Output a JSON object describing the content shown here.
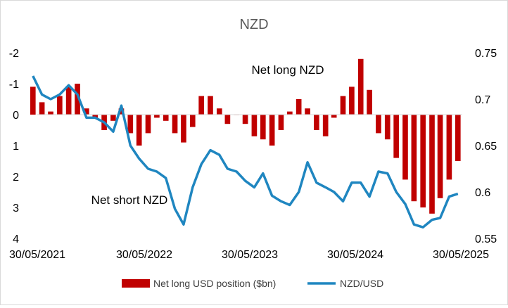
{
  "chart_data": {
    "type": "bar+line",
    "title": "NZD",
    "x_ticks": [
      "30/05/2021",
      "30/05/2022",
      "30/05/2023",
      "30/05/2024",
      "30/05/2025"
    ],
    "x_range": [
      "2021-05-30",
      "2025-05-30"
    ],
    "left_axis": {
      "ticks": [
        "-2",
        "-1",
        "0",
        "1",
        "2",
        "3",
        "4"
      ],
      "range": [
        -2,
        4
      ],
      "inverted": true
    },
    "right_axis": {
      "ticks": [
        "0.75",
        "0.7",
        "0.65",
        "0.6",
        "0.55"
      ],
      "range": [
        0.55,
        0.75
      ]
    },
    "annotations": [
      "Net long NZD",
      "Net short NZD"
    ],
    "series": [
      {
        "name": "Net long USD position ($bn)",
        "type": "bar",
        "axis": "left",
        "color": "#c00000",
        "x": [
          "2021-05",
          "2021-06",
          "2021-07",
          "2021-08",
          "2021-09",
          "2021-10",
          "2021-11",
          "2021-12",
          "2022-01",
          "2022-02",
          "2022-03",
          "2022-04",
          "2022-05",
          "2022-06",
          "2022-07",
          "2022-08",
          "2022-09",
          "2022-10",
          "2022-11",
          "2022-12",
          "2023-01",
          "2023-02",
          "2023-03",
          "2023-04",
          "2023-05",
          "2023-06",
          "2023-07",
          "2023-08",
          "2023-09",
          "2023-10",
          "2023-11",
          "2023-12",
          "2024-01",
          "2024-02",
          "2024-03",
          "2024-04",
          "2024-05",
          "2024-06",
          "2024-07",
          "2024-08",
          "2024-09",
          "2024-10",
          "2024-11",
          "2024-12",
          "2025-01",
          "2025-02",
          "2025-03",
          "2025-04",
          "2025-05"
        ],
        "values": [
          -0.9,
          -0.4,
          -0.1,
          -0.6,
          -0.9,
          -1.0,
          -0.2,
          0.1,
          0.5,
          0.2,
          -0.2,
          0.6,
          1.0,
          0.6,
          0.1,
          0.2,
          0.6,
          0.9,
          0.4,
          -0.6,
          -0.6,
          -0.2,
          0.3,
          0.0,
          0.3,
          0.7,
          0.8,
          1.0,
          0.5,
          -0.1,
          -0.5,
          -0.2,
          0.5,
          0.7,
          0.1,
          -0.6,
          -0.9,
          -1.8,
          -0.8,
          0.6,
          0.8,
          1.4,
          2.1,
          2.8,
          3.0,
          3.2,
          2.7,
          2.1,
          1.5
        ]
      },
      {
        "name": "NZD/USD",
        "type": "line",
        "axis": "right",
        "color": "#1f86c0",
        "x": [
          "2021-05",
          "2021-06",
          "2021-07",
          "2021-08",
          "2021-09",
          "2021-10",
          "2021-11",
          "2021-12",
          "2022-01",
          "2022-02",
          "2022-03",
          "2022-04",
          "2022-05",
          "2022-06",
          "2022-07",
          "2022-08",
          "2022-09",
          "2022-10",
          "2022-11",
          "2022-12",
          "2023-01",
          "2023-02",
          "2023-03",
          "2023-04",
          "2023-05",
          "2023-06",
          "2023-07",
          "2023-08",
          "2023-09",
          "2023-10",
          "2023-11",
          "2023-12",
          "2024-01",
          "2024-02",
          "2024-03",
          "2024-04",
          "2024-05",
          "2024-06",
          "2024-07",
          "2024-08",
          "2024-09",
          "2024-10",
          "2024-11",
          "2024-12",
          "2025-01",
          "2025-02",
          "2025-03",
          "2025-04",
          "2025-05"
        ],
        "values": [
          0.725,
          0.705,
          0.7,
          0.705,
          0.715,
          0.705,
          0.68,
          0.68,
          0.675,
          0.665,
          0.693,
          0.65,
          0.636,
          0.625,
          0.622,
          0.615,
          0.582,
          0.565,
          0.605,
          0.63,
          0.645,
          0.64,
          0.625,
          0.622,
          0.612,
          0.605,
          0.62,
          0.596,
          0.59,
          0.586,
          0.6,
          0.632,
          0.61,
          0.605,
          0.6,
          0.59,
          0.61,
          0.61,
          0.595,
          0.622,
          0.62,
          0.6,
          0.587,
          0.565,
          0.562,
          0.57,
          0.572,
          0.595,
          0.598
        ]
      }
    ],
    "legend": "bottom",
    "grid": false
  }
}
